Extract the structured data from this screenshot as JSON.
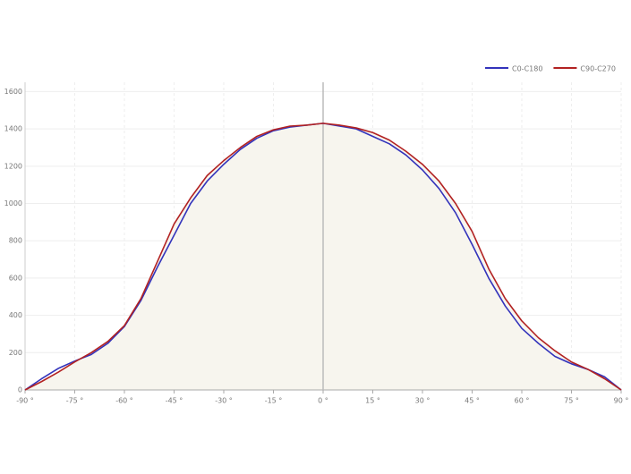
{
  "chart_data": {
    "type": "line",
    "x": [
      -90,
      -85,
      -80,
      -75,
      -70,
      -65,
      -60,
      -55,
      -50,
      -45,
      -40,
      -35,
      -30,
      -25,
      -20,
      -15,
      -10,
      -5,
      0,
      5,
      10,
      15,
      20,
      25,
      30,
      35,
      40,
      45,
      50,
      55,
      60,
      65,
      70,
      75,
      80,
      85,
      90
    ],
    "series": [
      {
        "name": "C0-C180",
        "color": "#3333bb",
        "values": [
          0,
          60,
          115,
          155,
          190,
          250,
          340,
          480,
          660,
          830,
          1000,
          1120,
          1210,
          1290,
          1350,
          1390,
          1410,
          1420,
          1430,
          1415,
          1400,
          1360,
          1320,
          1260,
          1180,
          1080,
          950,
          780,
          600,
          450,
          330,
          250,
          180,
          140,
          110,
          70,
          0
        ]
      },
      {
        "name": "C90-C270",
        "color": "#b22222",
        "values": [
          0,
          45,
          95,
          150,
          200,
          260,
          345,
          490,
          690,
          890,
          1030,
          1150,
          1230,
          1300,
          1360,
          1395,
          1415,
          1420,
          1430,
          1420,
          1405,
          1380,
          1340,
          1280,
          1210,
          1120,
          1000,
          850,
          650,
          490,
          370,
          280,
          210,
          150,
          110,
          60,
          0
        ]
      }
    ],
    "xlim": [
      -90,
      90
    ],
    "xticks": [
      {
        "value": -90,
        "label": "-90 °"
      },
      {
        "value": -75,
        "label": "-75 °"
      },
      {
        "value": -60,
        "label": "-60 °"
      },
      {
        "value": -45,
        "label": "-45 °"
      },
      {
        "value": -30,
        "label": "-30 °"
      },
      {
        "value": -15,
        "label": "-15 °"
      },
      {
        "value": 0,
        "label": "0 °"
      },
      {
        "value": 15,
        "label": "15 °"
      },
      {
        "value": 30,
        "label": "30 °"
      },
      {
        "value": 45,
        "label": "45 °"
      },
      {
        "value": 60,
        "label": "60 °"
      },
      {
        "value": 75,
        "label": "75 °"
      },
      {
        "value": 90,
        "label": "90 °"
      }
    ],
    "ylim": [
      0,
      1650
    ],
    "yticks": [
      0,
      200,
      400,
      600,
      800,
      1000,
      1200,
      1400,
      1600
    ],
    "grid": true,
    "legend": "top-right"
  }
}
